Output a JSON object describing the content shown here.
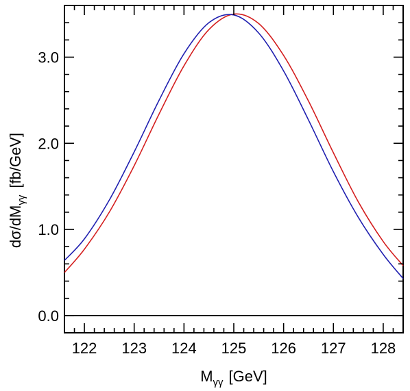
{
  "chart_data": {
    "type": "line",
    "title": "",
    "xlabel": {
      "main": "M",
      "sub": "γγ",
      "unit": "[GeV]"
    },
    "ylabel": {
      "main": "dσ/dM",
      "sub": "γγ",
      "unit": "[fb/GeV]"
    },
    "xlim": [
      121.6,
      128.4
    ],
    "ylim": [
      -0.2,
      3.6
    ],
    "x_ticks": [
      122,
      123,
      124,
      125,
      126,
      127,
      128
    ],
    "x_tick_labels": [
      "122",
      "123",
      "124",
      "125",
      "126",
      "127",
      "128"
    ],
    "y_ticks": [
      0.0,
      1.0,
      2.0,
      3.0
    ],
    "y_tick_labels": [
      "0.0",
      "1.0",
      "2.0",
      "3.0"
    ],
    "grid": false,
    "legend": "none",
    "reference_line": {
      "y": 0.0,
      "color": "#000000"
    },
    "series": [
      {
        "color": "#d42020",
        "x": [
          121.6,
          122.0,
          122.5,
          123.0,
          123.5,
          124.0,
          124.5,
          125.0,
          125.5,
          126.0,
          126.5,
          127.0,
          127.5,
          128.0,
          128.4
        ],
        "y": [
          0.5,
          0.77,
          1.2,
          1.74,
          2.34,
          2.9,
          3.32,
          3.5,
          3.39,
          3.02,
          2.49,
          1.89,
          1.32,
          0.86,
          0.58
        ]
      },
      {
        "color": "#2020b0",
        "x": [
          121.6,
          122.0,
          122.5,
          123.0,
          123.5,
          124.0,
          124.5,
          125.0,
          125.5,
          126.0,
          126.5,
          127.0,
          127.5,
          128.0,
          128.4
        ],
        "y": [
          0.64,
          0.89,
          1.34,
          1.9,
          2.5,
          3.04,
          3.4,
          3.49,
          3.28,
          2.84,
          2.27,
          1.67,
          1.14,
          0.71,
          0.43
        ]
      }
    ]
  }
}
